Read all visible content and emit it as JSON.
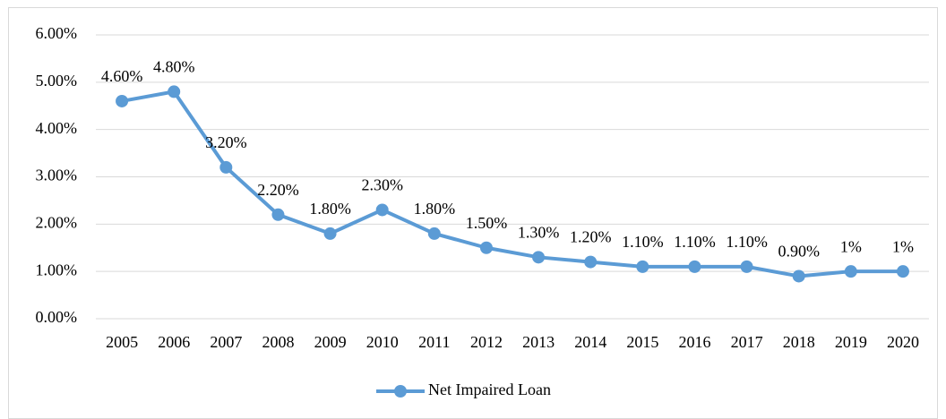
{
  "chart_data": {
    "type": "line",
    "categories": [
      "2005",
      "2006",
      "2007",
      "2008",
      "2009",
      "2010",
      "2011",
      "2012",
      "2013",
      "2014",
      "2015",
      "2016",
      "2017",
      "2018",
      "2019",
      "2020"
    ],
    "series": [
      {
        "name": "Net Impaired Loan",
        "color": "#5b9bd5",
        "values": [
          4.6,
          4.8,
          3.2,
          2.2,
          1.8,
          2.3,
          1.8,
          1.5,
          1.3,
          1.2,
          1.1,
          1.1,
          1.1,
          0.9,
          1,
          1
        ],
        "value_labels": [
          "4.60%",
          "4.80%",
          "3.20%",
          "2.20%",
          "1.80%",
          "2.30%",
          "1.80%",
          "1.50%",
          "1.30%",
          "1.20%",
          "1.10%",
          "1.10%",
          "1.10%",
          "0.90%",
          "1%",
          "1%"
        ]
      }
    ],
    "ylim": [
      0,
      6
    ],
    "yticks": [
      {
        "value": 0,
        "label": "0.00%"
      },
      {
        "value": 1,
        "label": "1.00%"
      },
      {
        "value": 2,
        "label": "2.00%"
      },
      {
        "value": 3,
        "label": "3.00%"
      },
      {
        "value": 4,
        "label": "4.00%"
      },
      {
        "value": 5,
        "label": "5.00%"
      },
      {
        "value": 6,
        "label": "6.00%"
      }
    ],
    "grid": true,
    "legend": "bottom"
  }
}
